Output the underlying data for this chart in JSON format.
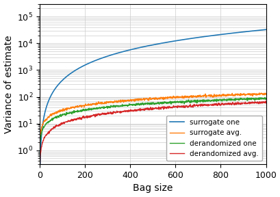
{
  "x_max": 1000,
  "x_points": 1000,
  "xlabel": "Bag size",
  "ylabel": "Variance of estimate",
  "xlim": [
    0,
    1000
  ],
  "ylim": [
    0.3,
    300000
  ],
  "yticks": [
    1,
    10,
    100,
    1000,
    10000,
    100000
  ],
  "colors": {
    "surrogate_one": "#1f77b4",
    "surrogate_avg": "#ff7f0e",
    "derandomized_one": "#2ca02c",
    "derandomized_avg": "#d62728"
  },
  "legend_labels": [
    "surrogate one",
    "surrogate avg.",
    "derandomized one",
    "derandomized avg."
  ],
  "legend_loc": "lower right",
  "surrogate_one_a": 0.065,
  "surrogate_one_b": 1.9,
  "surrogate_avg_a": 1.8,
  "surrogate_avg_b": 0.62,
  "derandomized_one_a": 1.2,
  "derandomized_one_b": 0.62,
  "derandomized_avg_a": 0.25,
  "derandomized_avg_b": 0.8
}
